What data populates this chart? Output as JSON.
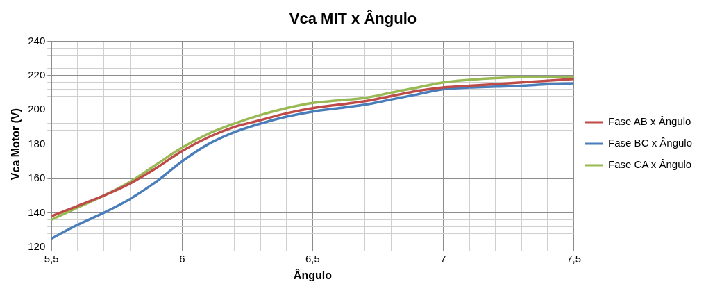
{
  "chart_data": {
    "type": "line",
    "title": "Vca MIT x Ângulo",
    "xlabel": "Ângulo",
    "ylabel": "Vca Motor (V)",
    "x": [
      5.5,
      5.6,
      5.7,
      5.8,
      5.9,
      6.0,
      6.1,
      6.2,
      6.3,
      6.4,
      6.5,
      6.6,
      6.7,
      6.8,
      6.9,
      7.0,
      7.1,
      7.2,
      7.3,
      7.4,
      7.5
    ],
    "series": [
      {
        "name": "Fase AB x Ângulo",
        "color": "#be4b48",
        "values": [
          138,
          144,
          150,
          157,
          166,
          176,
          184,
          190,
          194,
          198,
          201,
          203,
          205,
          208,
          211,
          213,
          214,
          215,
          216,
          217,
          218
        ]
      },
      {
        "name": "Fase BC x Ângulo",
        "color": "#4a7ebb",
        "values": [
          125,
          133,
          140,
          148,
          158,
          170,
          180,
          187,
          192,
          196,
          199,
          201,
          203,
          206,
          209,
          212,
          213,
          213.5,
          214,
          215,
          215.5
        ]
      },
      {
        "name": "Fase CA x Ângulo",
        "color": "#98b954",
        "values": [
          136,
          143,
          150,
          158,
          168,
          178,
          186,
          192,
          197,
          201,
          204,
          205.5,
          207,
          210,
          213,
          216,
          217.5,
          218.5,
          219,
          219,
          219
        ]
      }
    ],
    "xlim": [
      5.5,
      7.5
    ],
    "xticks": [
      {
        "value": 5.5,
        "label": "5,5"
      },
      {
        "value": 5.6,
        "label": null
      },
      {
        "value": 5.7,
        "label": null
      },
      {
        "value": 5.8,
        "label": null
      },
      {
        "value": 5.9,
        "label": null
      },
      {
        "value": 6,
        "label": "6"
      },
      {
        "value": 6.1,
        "label": null
      },
      {
        "value": 6.2,
        "label": null
      },
      {
        "value": 6.3,
        "label": null
      },
      {
        "value": 6.4,
        "label": null
      },
      {
        "value": 6.5,
        "label": "6,5"
      },
      {
        "value": 6.6,
        "label": null
      },
      {
        "value": 6.7,
        "label": null
      },
      {
        "value": 6.8,
        "label": null
      },
      {
        "value": 6.9,
        "label": null
      },
      {
        "value": 7,
        "label": "7"
      },
      {
        "value": 7.1,
        "label": null
      },
      {
        "value": 7.2,
        "label": null
      },
      {
        "value": 7.3,
        "label": null
      },
      {
        "value": 7.4,
        "label": null
      },
      {
        "value": 7.5,
        "label": "7,5"
      }
    ],
    "ylim": [
      120,
      240
    ],
    "yticks": [
      120,
      {
        "value": 124,
        "label": null
      },
      {
        "value": 128,
        "label": null
      },
      {
        "value": 132,
        "label": null
      },
      {
        "value": 136,
        "label": null
      },
      140,
      {
        "value": 144,
        "label": null
      },
      {
        "value": 148,
        "label": null
      },
      {
        "value": 152,
        "label": null
      },
      {
        "value": 156,
        "label": null
      },
      160,
      {
        "value": 164,
        "label": null
      },
      {
        "value": 168,
        "label": null
      },
      {
        "value": 172,
        "label": null
      },
      {
        "value": 176,
        "label": null
      },
      180,
      {
        "value": 184,
        "label": null
      },
      {
        "value": 188,
        "label": null
      },
      {
        "value": 192,
        "label": null
      },
      {
        "value": 196,
        "label": null
      },
      200,
      {
        "value": 204,
        "label": null
      },
      {
        "value": 208,
        "label": null
      },
      {
        "value": 212,
        "label": null
      },
      {
        "value": 216,
        "label": null
      },
      220,
      {
        "value": 224,
        "label": null
      },
      {
        "value": 228,
        "label": null
      },
      {
        "value": 232,
        "label": null
      },
      {
        "value": 236,
        "label": null
      },
      240
    ],
    "grid": true,
    "legend": "right",
    "marker": "none",
    "line_style": "solid"
  }
}
